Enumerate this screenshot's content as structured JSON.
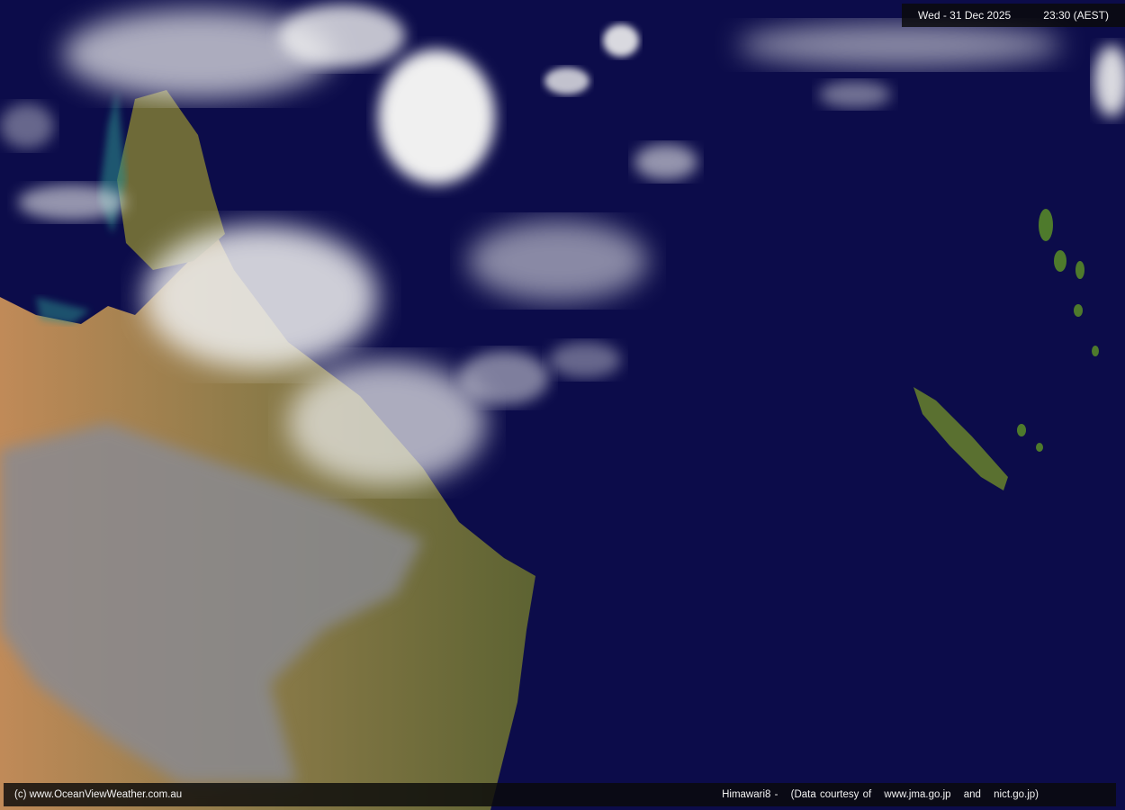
{
  "header": {
    "date": "Wed - 31 Dec 2025",
    "time": "23:30 (AEST)"
  },
  "footer": {
    "copyright": "(c) www.OceanViewWeather.com.au",
    "satellite": "Himawari8  -",
    "courtesy": "(Data courtesy of",
    "source1": "www.jma.go.jp",
    "and": "and",
    "source2": "nict.go.jp)"
  },
  "colors": {
    "ocean": "#0c0c4a",
    "land_dry": "#b58a55",
    "land_green": "#6b6a35",
    "cloud": "#f0f0f0"
  }
}
